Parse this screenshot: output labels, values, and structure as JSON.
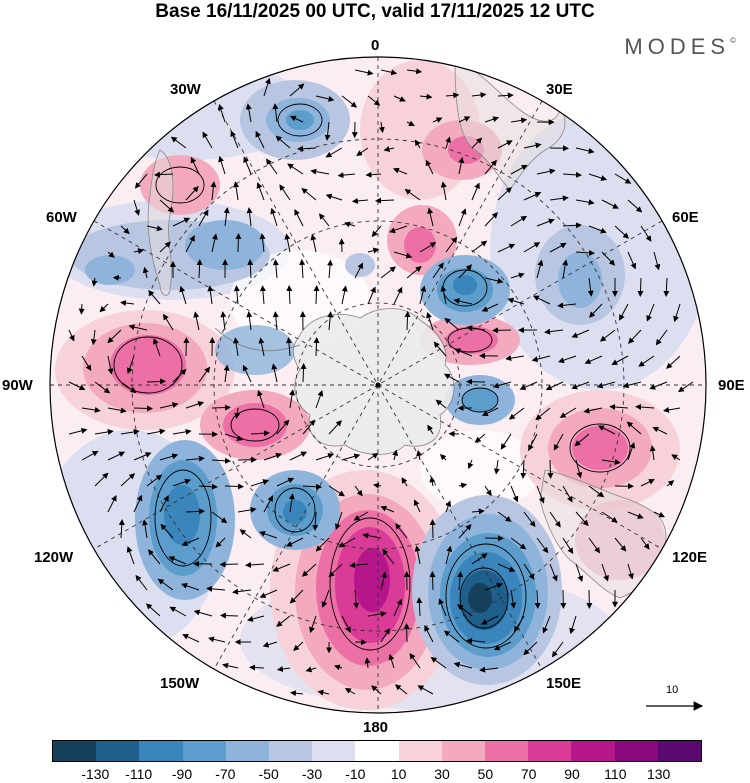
{
  "title": "Base 16/11/2025 00 UTC, valid 17/11/2025 12 UTC",
  "brand": "MODES",
  "brand_mark": "©",
  "longitude_labels": {
    "lon_0": "0",
    "lon_30e": "30E",
    "lon_60e": "60E",
    "lon_90e": "90E",
    "lon_120e": "120E",
    "lon_150e": "150E",
    "lon_180": "180",
    "lon_150w": "150W",
    "lon_120w": "120W",
    "lon_90w": "90W",
    "lon_60w": "60W",
    "lon_30w": "30W"
  },
  "reference_vector": "10",
  "colorbar": {
    "ticks": [
      "-130",
      "-110",
      "-90",
      "-70",
      "-50",
      "-30",
      "-10",
      "10",
      "30",
      "50",
      "70",
      "90",
      "110",
      "130"
    ],
    "colors": [
      "#17405e",
      "#1f5f8c",
      "#3a85bb",
      "#5c9dcb",
      "#8fb4db",
      "#b8c6e2",
      "#dcdff0",
      "#ffffff",
      "#f7d3d9",
      "#f3aabf",
      "#ec6fa6",
      "#d93b97",
      "#b5168a",
      "#860a7a",
      "#5a0a6e"
    ]
  },
  "anomaly_centers": [
    {
      "name": "anomaly-center-south-of-nz",
      "value": "positive, above 110"
    },
    {
      "name": "anomaly-center-south-of-australia",
      "value": "negative, below -110"
    }
  ]
}
